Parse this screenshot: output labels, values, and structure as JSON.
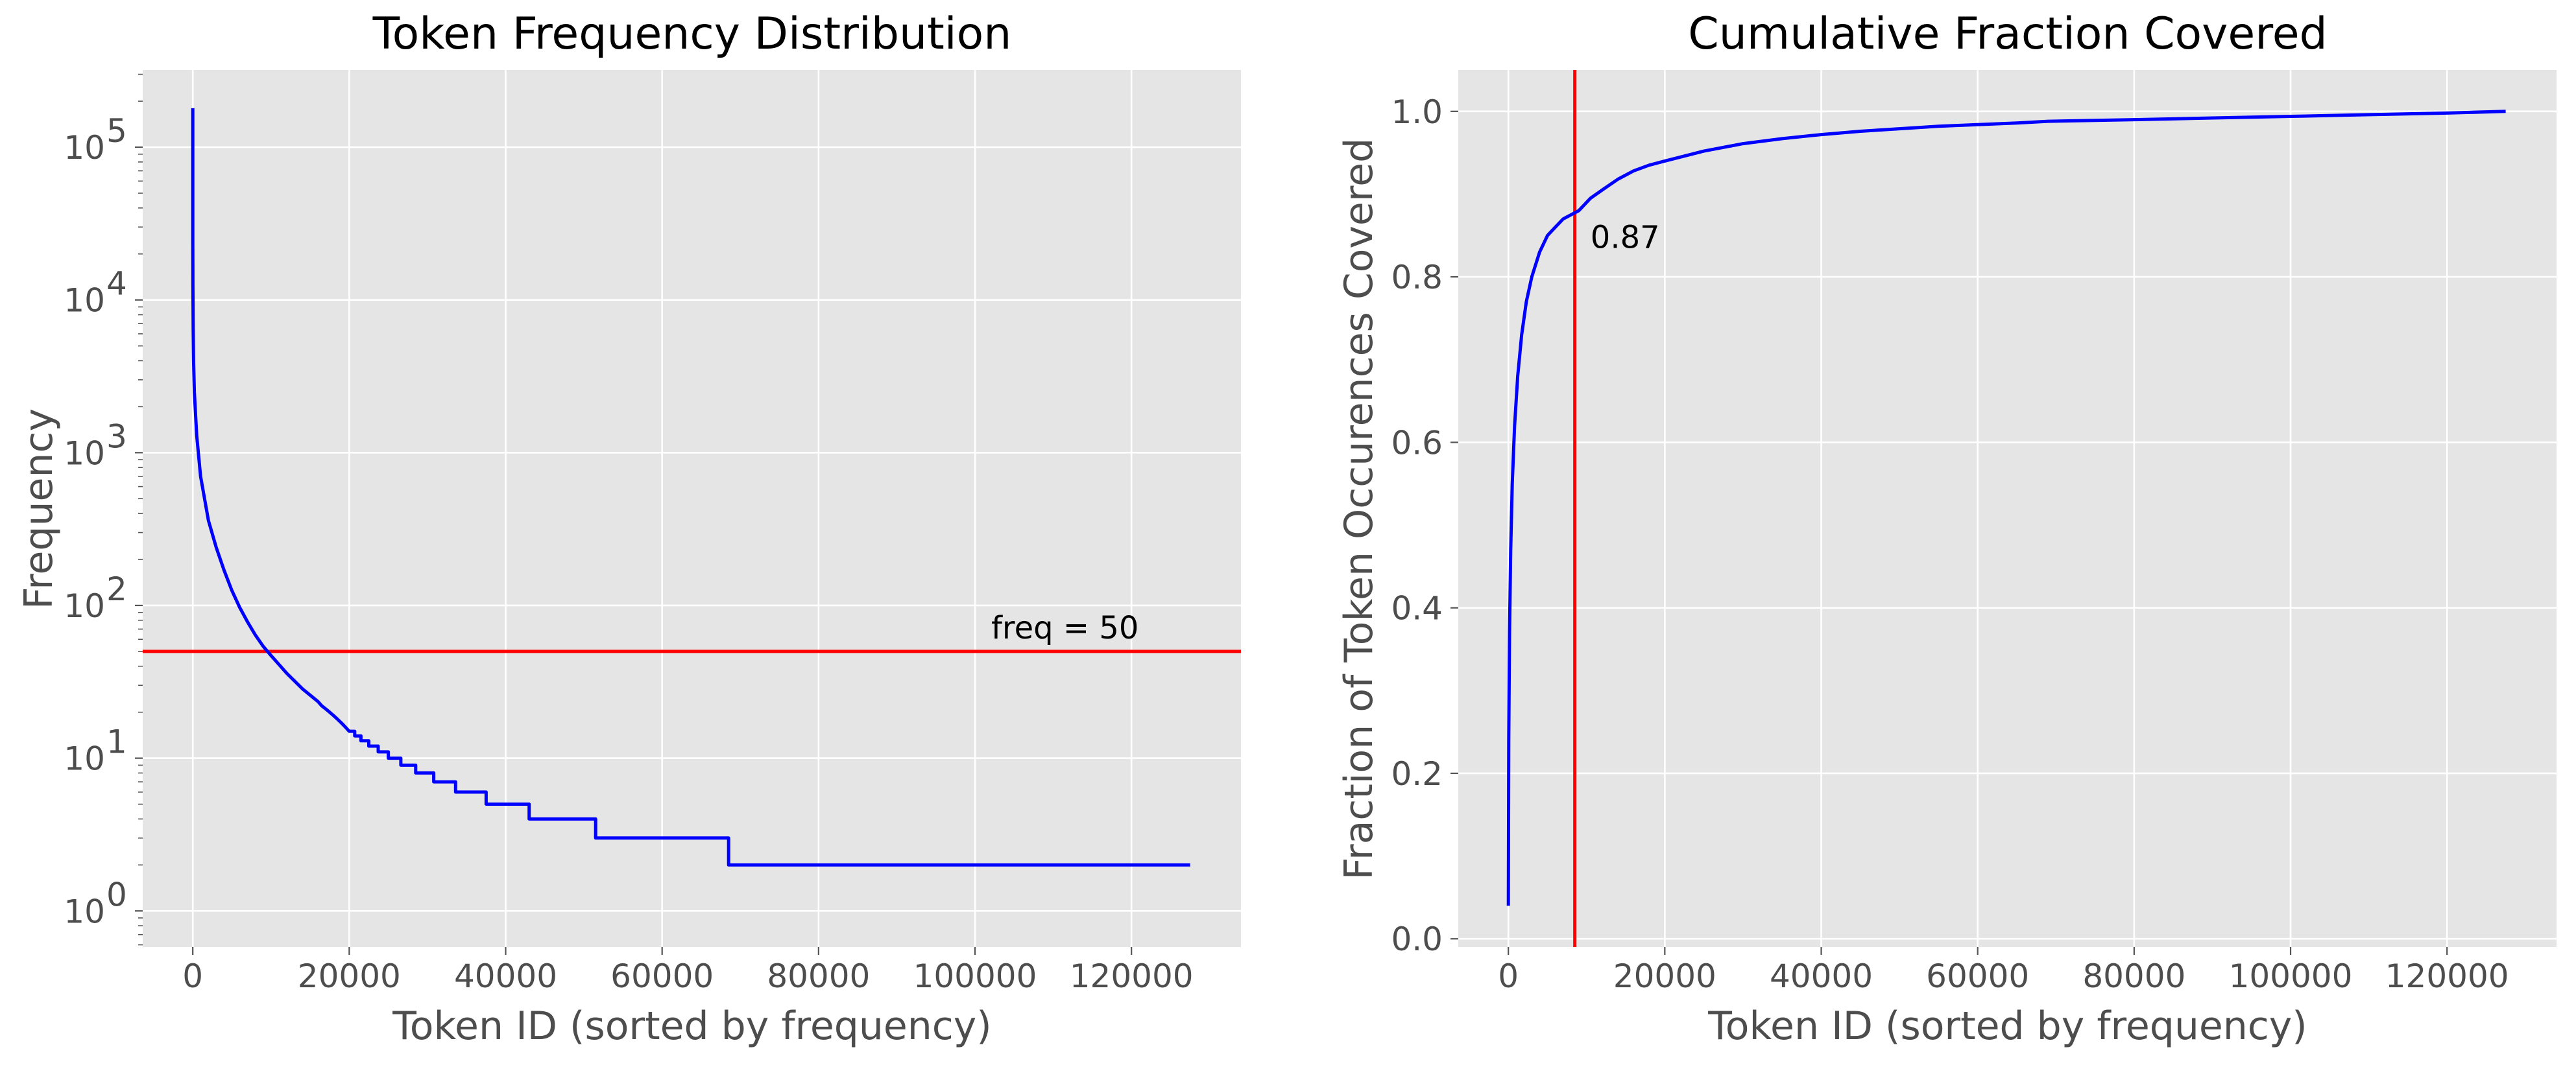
{
  "chart_data": [
    {
      "type": "line",
      "title": "Token Frequency Distribution",
      "xlabel": "Token ID (sorted by frequency)",
      "ylabel": "Frequency",
      "yscale": "log",
      "xlim": [
        -6400,
        134000
      ],
      "ylim": [
        0.58,
        320000
      ],
      "xticks": [
        0,
        20000,
        40000,
        60000,
        80000,
        100000,
        120000
      ],
      "xtick_labels": [
        "0",
        "20000",
        "40000",
        "60000",
        "80000",
        "100000",
        "120000"
      ],
      "yticks": [
        1,
        10,
        100,
        1000,
        10000,
        100000
      ],
      "ytick_labels": [
        {
          "base": "10",
          "exp": "0"
        },
        {
          "base": "10",
          "exp": "1"
        },
        {
          "base": "10",
          "exp": "2"
        },
        {
          "base": "10",
          "exp": "3"
        },
        {
          "base": "10",
          "exp": "4"
        },
        {
          "base": "10",
          "exp": "5"
        }
      ],
      "grid": true,
      "series": [
        {
          "color": "#0000ff",
          "x": [
            0,
            1,
            5,
            20,
            50,
            100,
            200,
            500,
            1000,
            2000,
            3000,
            4000,
            5000,
            6000,
            7000,
            8000,
            9000,
            10000,
            12000,
            14000,
            16000,
            16500,
            17000,
            17500,
            18000,
            18500,
            19000,
            19500,
            20000,
            20700,
            20700,
            21500,
            21500,
            22500,
            22500,
            23700,
            23700,
            25000,
            25000,
            26600,
            26600,
            28500,
            28500,
            30800,
            30800,
            33600,
            33600,
            37500,
            37500,
            43000,
            43000,
            51500,
            51500,
            68500,
            68500,
            127500
          ],
          "y": [
            180000,
            50000,
            25000,
            12000,
            6500,
            4000,
            2500,
            1300,
            700,
            360,
            240,
            170,
            125,
            97,
            78,
            64,
            54,
            47,
            36,
            28.5,
            23.5,
            22,
            21,
            20,
            19,
            18,
            17,
            16,
            15,
            15,
            14,
            14,
            13,
            13,
            12,
            12,
            11,
            11,
            10,
            10,
            9,
            9,
            8,
            8,
            7,
            7,
            6,
            6,
            5,
            5,
            4,
            4,
            3,
            3,
            2,
            2
          ]
        }
      ],
      "hline": {
        "y": 50,
        "color": "#ff0000",
        "label": "freq = 50"
      }
    },
    {
      "type": "line",
      "title": "Cumulative Fraction Covered",
      "xlabel": "Token ID (sorted by frequency)",
      "ylabel": "Fraction of Token Occurences Covered",
      "xlim": [
        -6400,
        134000
      ],
      "ylim": [
        -0.01,
        1.05
      ],
      "xticks": [
        0,
        20000,
        40000,
        60000,
        80000,
        100000,
        120000
      ],
      "xtick_labels": [
        "0",
        "20000",
        "40000",
        "60000",
        "80000",
        "100000",
        "120000"
      ],
      "yticks": [
        0.0,
        0.2,
        0.4,
        0.6,
        0.8,
        1.0
      ],
      "ytick_labels": [
        "0.0",
        "0.2",
        "0.4",
        "0.6",
        "0.8",
        "1.0"
      ],
      "grid": true,
      "series": [
        {
          "color": "#0000ff",
          "x": [
            0,
            50,
            150,
            300,
            500,
            800,
            1200,
            1700,
            2300,
            3000,
            4000,
            5000,
            6000,
            7000,
            8000,
            9000,
            10500,
            12000,
            14000,
            16000,
            18000,
            20000,
            25000,
            30000,
            35000,
            40000,
            45000,
            50000,
            55000,
            60000,
            65000,
            69000,
            80000,
            90000,
            100000,
            110000,
            120000,
            127500
          ],
          "y": [
            0.04,
            0.24,
            0.37,
            0.47,
            0.55,
            0.62,
            0.68,
            0.73,
            0.77,
            0.8,
            0.83,
            0.85,
            0.86,
            0.87,
            0.875,
            0.88,
            0.895,
            0.905,
            0.918,
            0.928,
            0.935,
            0.94,
            0.952,
            0.961,
            0.967,
            0.972,
            0.976,
            0.979,
            0.982,
            0.984,
            0.986,
            0.988,
            0.99,
            0.992,
            0.994,
            0.996,
            0.998,
            1.0
          ]
        }
      ],
      "vline": {
        "x": 8500,
        "color": "#ff0000"
      },
      "annotation": {
        "text": "0.87",
        "x": 10500,
        "y": 0.835
      }
    }
  ]
}
